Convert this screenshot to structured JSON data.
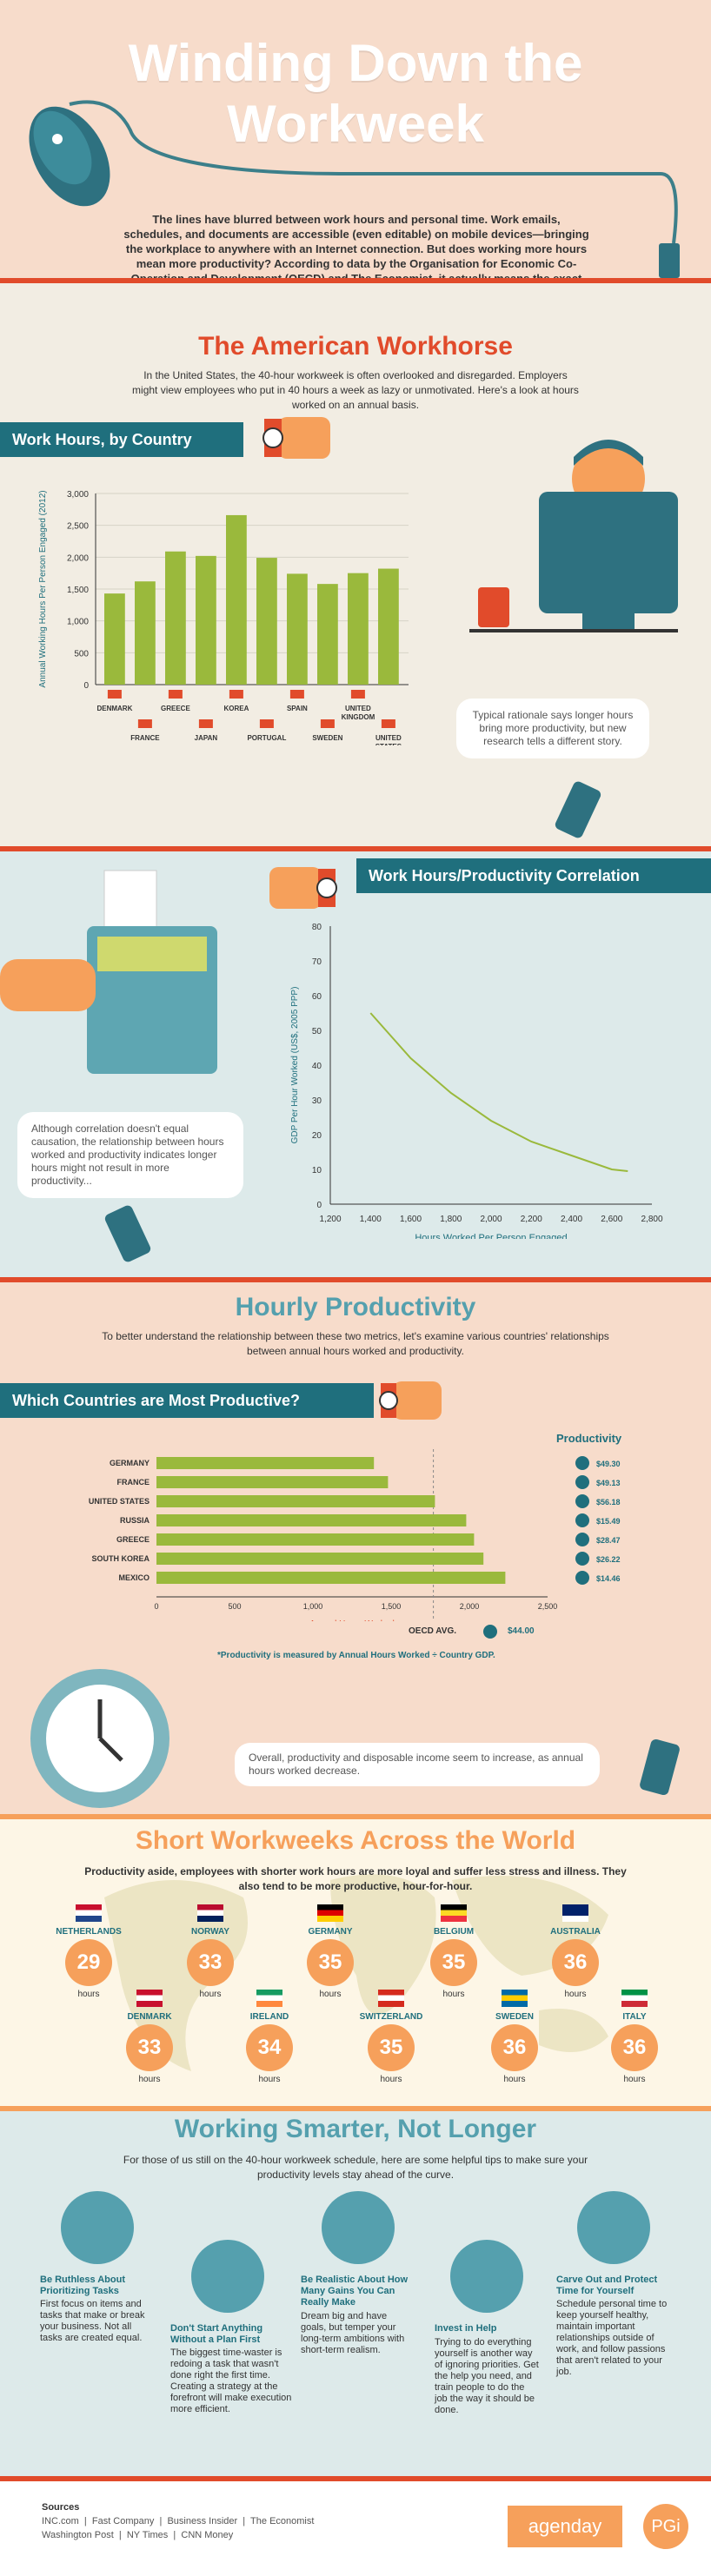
{
  "header": {
    "title_line1": "Winding Down the",
    "title_line2": "Workweek",
    "intro": "The lines have blurred between work hours and personal time. Work emails, schedules, and documents are accessible (even editable) on mobile devices—bringing the workplace to anywhere with an Internet connection. But does working more hours mean more productivity? According to data by the Organisation for Economic Co-Operation and Development (OECD) and The Economist, it actually means the exact opposite."
  },
  "workhorse": {
    "title": "The American Workhorse",
    "text": "In the United States, the 40-hour workweek is often overlooked and disregarded. Employers might view employees who put in 40 hours a week as lazy or unmotivated. Here's a look at hours worked on an annual basis.",
    "bar_label": "Work Hours, by Country",
    "bubble": "Typical rationale says longer hours bring more productivity, but new research tells a different story."
  },
  "correlation": {
    "bar_label": "Work Hours/Productivity Correlation",
    "bubble": "Although correlation doesn't equal causation, the relationship between hours worked and productivity indicates longer hours might not result in more productivity..."
  },
  "hourly": {
    "title": "Hourly Productivity",
    "text": "To better understand the relationship between these two metrics, let's examine various countries' relationships between annual hours worked and productivity.",
    "bar_label": "Which Countries are Most Productive?",
    "productivity_header": "Productivity",
    "oecd_label": "OECD AVG.",
    "oecd_value": "$44.00",
    "footnote": "*Productivity is measured by Annual Hours Worked ÷ Country GDP.",
    "bubble": "Overall, productivity and disposable income seem to increase, as annual hours worked decrease."
  },
  "short": {
    "title": "Short Workweeks Across the World",
    "text": "Productivity aside, employees with shorter work hours are more loyal and suffer less stress and illness. They also tend to be more productive, hour-for-hour.",
    "hours_word": "hours",
    "row1": [
      {
        "name": "NETHERLANDS",
        "hours": "29"
      },
      {
        "name": "NORWAY",
        "hours": "33"
      },
      {
        "name": "GERMANY",
        "hours": "35"
      },
      {
        "name": "BELGIUM",
        "hours": "35"
      },
      {
        "name": "AUSTRALIA",
        "hours": "36"
      }
    ],
    "row2": [
      {
        "name": "DENMARK",
        "hours": "33"
      },
      {
        "name": "IRELAND",
        "hours": "34"
      },
      {
        "name": "SWITZERLAND",
        "hours": "35"
      },
      {
        "name": "SWEDEN",
        "hours": "36"
      },
      {
        "name": "ITALY",
        "hours": "36"
      }
    ]
  },
  "smarter": {
    "title": "Working Smarter, Not Longer",
    "text": "For those of us still on the 40-hour workweek schedule, here are some helpful tips to make sure your productivity levels stay ahead of the curve.",
    "tips": [
      {
        "title": "Be Ruthless About Prioritizing Tasks",
        "text": "First focus on items and tasks that make or break your business. Not all tasks are created equal."
      },
      {
        "title": "Don't Start Anything Without a Plan First",
        "text": "The biggest time-waster is redoing a task that wasn't done right the first time. Creating a strategy at the forefront will make execution more efficient."
      },
      {
        "title": "Be Realistic About How Many Gains You Can Really Make",
        "text": "Dream big and have goals, but temper your long-term ambitions with short-term realism."
      },
      {
        "title": "Invest in Help",
        "text": "Trying to do everything yourself is another way of ignoring priorities. Get the help you need, and train people to do the job the way it should be done."
      },
      {
        "title": "Carve Out and Protect Time for Yourself",
        "text": "Schedule personal time to keep yourself healthy, maintain important relationships outside of work, and follow passions that aren't related to your job."
      }
    ]
  },
  "footer": {
    "sources_label": "Sources",
    "sources_line1": "INC.com  |  Fast Company  |  Business Insider  |  The Economist",
    "sources_line2": "Washington Post  |  NY Times  |  CNN Money",
    "logo1": "agenday",
    "logo2": "PGi"
  },
  "colors": {
    "teal": "#1f6f7d",
    "orange": "#f6a05b",
    "red": "#e14b2b",
    "green": "#9ab93c"
  },
  "chart_data": [
    {
      "type": "bar",
      "categories": [
        "DENMARK",
        "FRANCE",
        "GREECE",
        "JAPAN",
        "KOREA",
        "PORTUGAL",
        "SPAIN",
        "SWEDEN",
        "UNITED KINGDOM",
        "UNITED STATES"
      ],
      "values": [
        1430,
        1620,
        2090,
        2020,
        2660,
        1990,
        1740,
        1580,
        1750,
        1820
      ],
      "ylabel": "Annual Working Hours Per Person Engaged (2012)",
      "yticks": [
        "0",
        "500",
        "1,000",
        "1,500",
        "2,000",
        "2,500",
        "3,000"
      ],
      "ylim": [
        0,
        3000
      ],
      "grid": true
    },
    {
      "type": "line",
      "x": [
        1400,
        1600,
        1800,
        2000,
        2200,
        2400,
        2600,
        2680
      ],
      "y": [
        55,
        42,
        32,
        24,
        18,
        14,
        10,
        9.5
      ],
      "xlabel": "Hours Worked Per Person Engaged",
      "ylabel": "GDP Per Hour Worked (US$, 2005 PPP)",
      "xticks": [
        "1,200",
        "1,400",
        "1,600",
        "1,800",
        "2,000",
        "2,200",
        "2,400",
        "2,600",
        "2,800"
      ],
      "yticks": [
        "0",
        "10",
        "20",
        "30",
        "40",
        "50",
        "60",
        "70",
        "80"
      ],
      "xlim": [
        1200,
        2800
      ],
      "ylim": [
        0,
        80
      ]
    },
    {
      "type": "bar",
      "orientation": "horizontal",
      "categories": [
        "GERMANY",
        "FRANCE",
        "UNITED STATES",
        "RUSSIA",
        "GREECE",
        "SOUTH KOREA",
        "MEXICO"
      ],
      "values": [
        1390,
        1480,
        1780,
        1980,
        2030,
        2090,
        2230
      ],
      "productivity": [
        "$49.30",
        "$49.13",
        "$56.18",
        "$15.49",
        "$28.47",
        "$26.22",
        "$14.46"
      ],
      "xlabel": "Annual Hours Worked",
      "xticks": [
        "0",
        "500",
        "1,000",
        "1,500",
        "2,000",
        "2,500"
      ],
      "xlim": [
        0,
        2500
      ],
      "reference_line": 1770
    }
  ]
}
